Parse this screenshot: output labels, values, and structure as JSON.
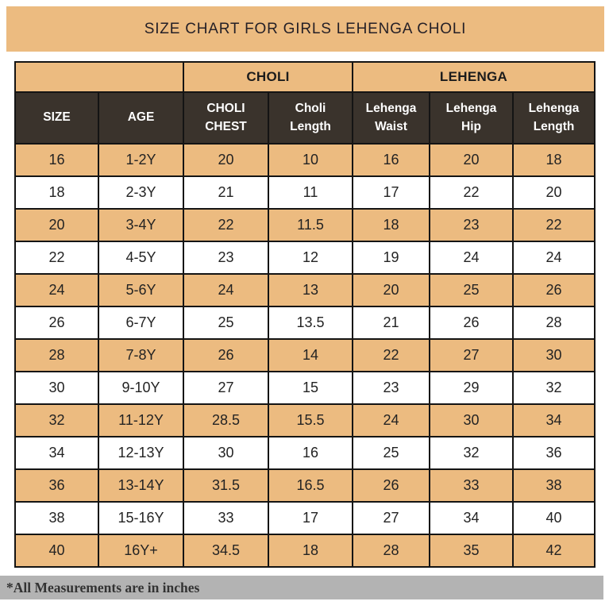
{
  "banner": {
    "title": "SIZE CHART FOR GIRLS LEHENGA CHOLI"
  },
  "table": {
    "group_headers": [
      {
        "label": "",
        "span": 2
      },
      {
        "label": "CHOLI",
        "span": 2
      },
      {
        "label": "LEHENGA",
        "span": 3
      }
    ],
    "columns": [
      "SIZE",
      "AGE",
      "CHOLI CHEST",
      "Choli Length",
      "Lehenga Waist",
      "Lehenga Hip",
      "Lehenga Length"
    ],
    "rows": [
      [
        "16",
        "1-2Y",
        "20",
        "10",
        "16",
        "20",
        "18"
      ],
      [
        "18",
        "2-3Y",
        "21",
        "11",
        "17",
        "22",
        "20"
      ],
      [
        "20",
        "3-4Y",
        "22",
        "11.5",
        "18",
        "23",
        "22"
      ],
      [
        "22",
        "4-5Y",
        "23",
        "12",
        "19",
        "24",
        "24"
      ],
      [
        "24",
        "5-6Y",
        "24",
        "13",
        "20",
        "25",
        "26"
      ],
      [
        "26",
        "6-7Y",
        "25",
        "13.5",
        "21",
        "26",
        "28"
      ],
      [
        "28",
        "7-8Y",
        "26",
        "14",
        "22",
        "27",
        "30"
      ],
      [
        "30",
        "9-10Y",
        "27",
        "15",
        "23",
        "29",
        "32"
      ],
      [
        "32",
        "11-12Y",
        "28.5",
        "15.5",
        "24",
        "30",
        "34"
      ],
      [
        "34",
        "12-13Y",
        "30",
        "16",
        "25",
        "32",
        "36"
      ],
      [
        "36",
        "13-14Y",
        "31.5",
        "16.5",
        "26",
        "33",
        "38"
      ],
      [
        "38",
        "15-16Y",
        "33",
        "17",
        "27",
        "34",
        "40"
      ],
      [
        "40",
        "16Y+",
        "34.5",
        "18",
        "28",
        "35",
        "42"
      ]
    ]
  },
  "footer": {
    "note": "*All Measurements are in inches"
  },
  "colors": {
    "accent_tan": "#ecbb80",
    "header_dark": "#3a332c",
    "footer_gray": "#b3b3b3",
    "border_black": "#141414"
  }
}
